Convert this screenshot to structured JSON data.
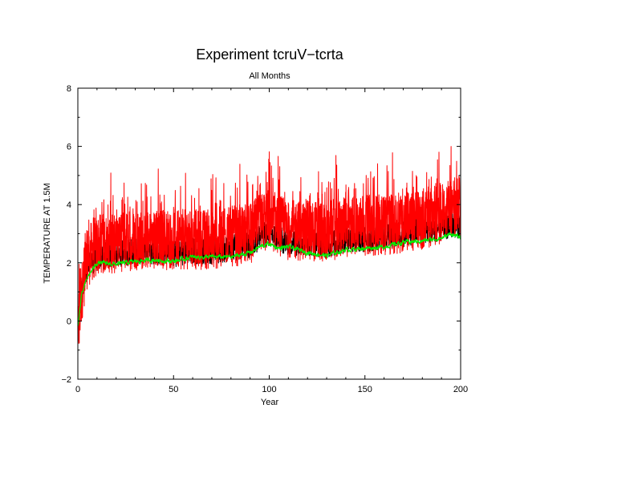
{
  "chart_data": {
    "type": "line",
    "title": "Experiment tcruV−tcrta",
    "subtitle": "All Months",
    "xlabel": "Year",
    "ylabel": "TEMPERATURE AT 1.5M",
    "xlim": [
      0,
      200
    ],
    "ylim": [
      -2,
      8
    ],
    "x_ticks": [
      0,
      50,
      100,
      150,
      200
    ],
    "y_ticks": [
      -2,
      0,
      2,
      4,
      6,
      8
    ],
    "grid": false,
    "legend": "none",
    "series": [
      {
        "color": "#ff0000",
        "style": "monthly, highly variable",
        "x": [
          0,
          2,
          5,
          10,
          20,
          30,
          40,
          50,
          60,
          70,
          80,
          90,
          95,
          100,
          105,
          110,
          120,
          130,
          140,
          150,
          160,
          170,
          180,
          190,
          195,
          200
        ],
        "y": [
          -0.5,
          1.0,
          2.2,
          2.6,
          2.7,
          2.8,
          2.8,
          2.8,
          2.8,
          2.8,
          2.9,
          3.0,
          3.3,
          3.5,
          3.3,
          3.1,
          3.1,
          3.1,
          3.2,
          3.3,
          3.3,
          3.4,
          3.5,
          3.7,
          3.9,
          3.9
        ],
        "min": -1.2,
        "max": 6.0
      },
      {
        "color": "#000000",
        "style": "annual/seasonal",
        "x": [
          0,
          2,
          5,
          10,
          20,
          30,
          40,
          50,
          60,
          70,
          80,
          90,
          95,
          100,
          105,
          110,
          120,
          130,
          140,
          150,
          160,
          170,
          180,
          190,
          195,
          200
        ],
        "y": [
          -0.3,
          1.0,
          1.9,
          2.2,
          2.3,
          2.4,
          2.4,
          2.3,
          2.4,
          2.4,
          2.5,
          2.6,
          2.9,
          3.0,
          2.8,
          2.7,
          2.7,
          2.6,
          2.8,
          2.8,
          2.9,
          3.0,
          3.1,
          3.2,
          3.3,
          3.3
        ]
      },
      {
        "color": "#00ee00",
        "style": "smoothed annual",
        "x": [
          0,
          2,
          5,
          10,
          20,
          30,
          40,
          50,
          60,
          70,
          80,
          90,
          95,
          100,
          105,
          110,
          120,
          130,
          140,
          150,
          160,
          170,
          180,
          190,
          195,
          200
        ],
        "y": [
          -0.2,
          0.9,
          1.5,
          2.0,
          1.95,
          2.05,
          2.1,
          2.05,
          2.2,
          2.2,
          2.2,
          2.35,
          2.55,
          2.65,
          2.5,
          2.55,
          2.35,
          2.25,
          2.45,
          2.5,
          2.55,
          2.7,
          2.75,
          2.85,
          3.0,
          2.85
        ]
      }
    ]
  }
}
